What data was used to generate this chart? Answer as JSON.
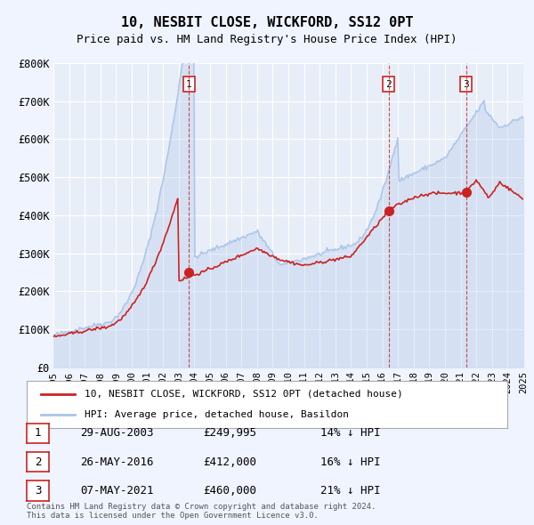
{
  "title": "10, NESBIT CLOSE, WICKFORD, SS12 0PT",
  "subtitle": "Price paid vs. HM Land Registry's House Price Index (HPI)",
  "xlabel": "",
  "ylabel": "",
  "ylim": [
    0,
    800000
  ],
  "yticks": [
    0,
    100000,
    200000,
    300000,
    400000,
    500000,
    600000,
    700000,
    800000
  ],
  "ytick_labels": [
    "£0",
    "£100K",
    "£200K",
    "£300K",
    "£400K",
    "£500K",
    "£600K",
    "£700K",
    "£800K"
  ],
  "xlim_start": 1995,
  "xlim_end": 2025,
  "background_color": "#f0f4ff",
  "plot_bg": "#e8eef8",
  "grid_color": "#ffffff",
  "hpi_color": "#aac4e8",
  "price_color": "#cc2222",
  "sale_marker_color": "#cc2222",
  "vline_color": "#cc2222",
  "legend_line1": "10, NESBIT CLOSE, WICKFORD, SS12 0PT (detached house)",
  "legend_line2": "HPI: Average price, detached house, Basildon",
  "sales": [
    {
      "num": 1,
      "date": "29-AUG-2003",
      "price": "£249,995",
      "pct": "14%",
      "year": 2003.66
    },
    {
      "num": 2,
      "date": "26-MAY-2016",
      "price": "£412,000",
      "pct": "16%",
      "year": 2016.4
    },
    {
      "num": 3,
      "date": "07-MAY-2021",
      "price": "£460,000",
      "pct": "21%",
      "year": 2021.35
    }
  ],
  "sale_values": [
    249995,
    412000,
    460000
  ],
  "footnote": "Contains HM Land Registry data © Crown copyright and database right 2024.\nThis data is licensed under the Open Government Licence v3.0."
}
